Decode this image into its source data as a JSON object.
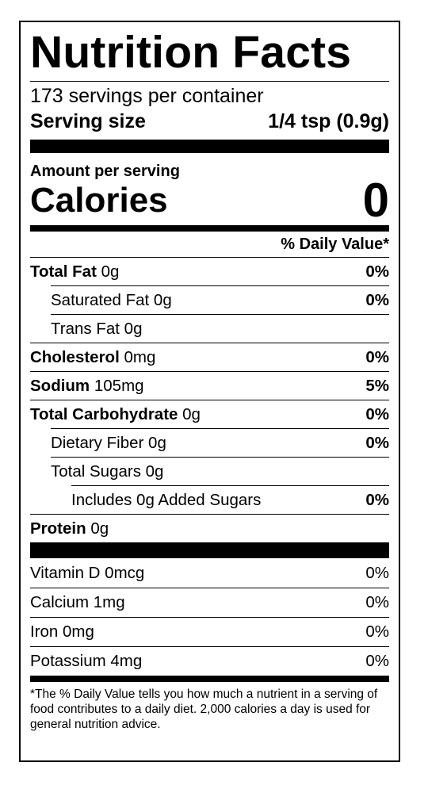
{
  "title": "Nutrition Facts",
  "servings_per_container": "173 servings per container",
  "serving_size": {
    "label": "Serving size",
    "value": "1/4 tsp (0.9g)"
  },
  "amount_per_serving": "Amount per serving",
  "calories": {
    "label": "Calories",
    "value": "0"
  },
  "daily_value_header": "% Daily Value*",
  "nutrients": [
    {
      "name": "Total Fat",
      "amount": "0g",
      "dv": "0%"
    },
    {
      "name": "Saturated Fat",
      "amount": "0g",
      "dv": "0%"
    },
    {
      "name": "Trans Fat",
      "amount": "0g",
      "dv": ""
    },
    {
      "name": "Cholesterol",
      "amount": "0mg",
      "dv": "0%"
    },
    {
      "name": "Sodium",
      "amount": "105mg",
      "dv": "5%"
    },
    {
      "name": "Total Carbohydrate",
      "amount": "0g",
      "dv": "0%"
    },
    {
      "name": "Dietary Fiber",
      "amount": "0g",
      "dv": "0%"
    },
    {
      "name": "Total Sugars",
      "amount": "0g",
      "dv": ""
    },
    {
      "name": "Includes 0g Added Sugars",
      "amount": "",
      "dv": "0%"
    },
    {
      "name": "Protein",
      "amount": "0g",
      "dv": ""
    }
  ],
  "vitamins": [
    {
      "label": "Vitamin D 0mcg",
      "dv": "0%"
    },
    {
      "label": "Calcium 1mg",
      "dv": "0%"
    },
    {
      "label": "Iron 0mg",
      "dv": "0%"
    },
    {
      "label": "Potassium 4mg",
      "dv": "0%"
    }
  ],
  "footnote": "*The % Daily Value tells you how much a nutrient in a serving of food contributes to a daily diet. 2,000 calories a day is used for general nutrition advice."
}
